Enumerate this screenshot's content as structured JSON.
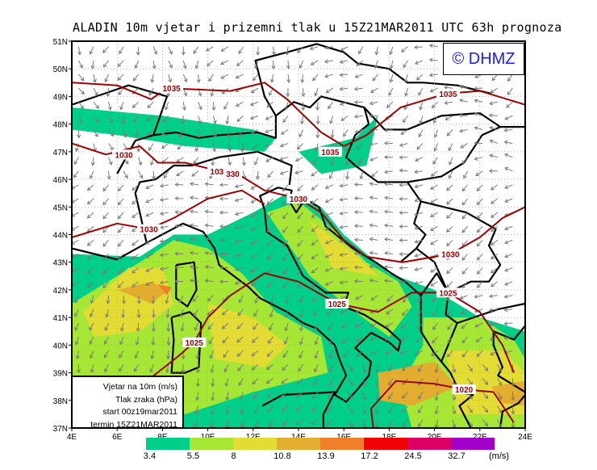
{
  "title": "ALADIN 10m vjetar i prizemni tlak u 15Z21MAR2011 UTC 63h prognoza",
  "logo": "© DHMZ",
  "legend": {
    "line1": "Vjetar na 10m (m/s)",
    "line2": "Tlak zraka (hPa)",
    "line3": "start 00z19mar2011",
    "line4": "termin 15Z21MAR2011"
  },
  "axes": {
    "lon_ticks": [
      "4E",
      "6E",
      "8E",
      "10E",
      "12E",
      "14E",
      "16E",
      "18E",
      "20E",
      "22E",
      "24E"
    ],
    "lat_ticks": [
      "37N",
      "38N",
      "39N",
      "40N",
      "41N",
      "42N",
      "43N",
      "44N",
      "45N",
      "46N",
      "47N",
      "48N",
      "49N",
      "50N",
      "51N"
    ],
    "lon_range": [
      4,
      24
    ],
    "lat_range": [
      37,
      51
    ]
  },
  "colorbar": {
    "colors": [
      "#00cf8a",
      "#a6e634",
      "#e3dc34",
      "#e3ae2f",
      "#ef7f2a",
      "#f00000",
      "#dc0064",
      "#a000c8"
    ],
    "labels": [
      "3.4",
      "5.5",
      "8",
      "10.8",
      "13.9",
      "17.2",
      "24.5",
      "32.7"
    ],
    "unit": "(m/s)"
  },
  "isobar_color": "#a00000",
  "isobar_labels": [
    {
      "text": "1035",
      "lon": 8.4,
      "lat": 49.3
    },
    {
      "text": "1035",
      "lon": 20.6,
      "lat": 49.1
    },
    {
      "text": "1035",
      "lon": 15.4,
      "lat": 47.0
    },
    {
      "text": "1030",
      "lon": 6.3,
      "lat": 46.9
    },
    {
      "text": "1030",
      "lon": 10.5,
      "lat": 46.3
    },
    {
      "text": "330",
      "lon": 11.1,
      "lat": 46.2
    },
    {
      "text": "1030",
      "lon": 14.0,
      "lat": 45.3
    },
    {
      "text": "1030",
      "lon": 7.4,
      "lat": 44.2
    },
    {
      "text": "1030",
      "lon": 20.7,
      "lat": 43.3
    },
    {
      "text": "1025",
      "lon": 20.6,
      "lat": 41.9
    },
    {
      "text": "1025",
      "lon": 15.7,
      "lat": 41.5
    },
    {
      "text": "1025",
      "lon": 9.4,
      "lat": 40.1
    },
    {
      "text": "1020",
      "lon": 21.3,
      "lat": 38.4
    }
  ]
}
